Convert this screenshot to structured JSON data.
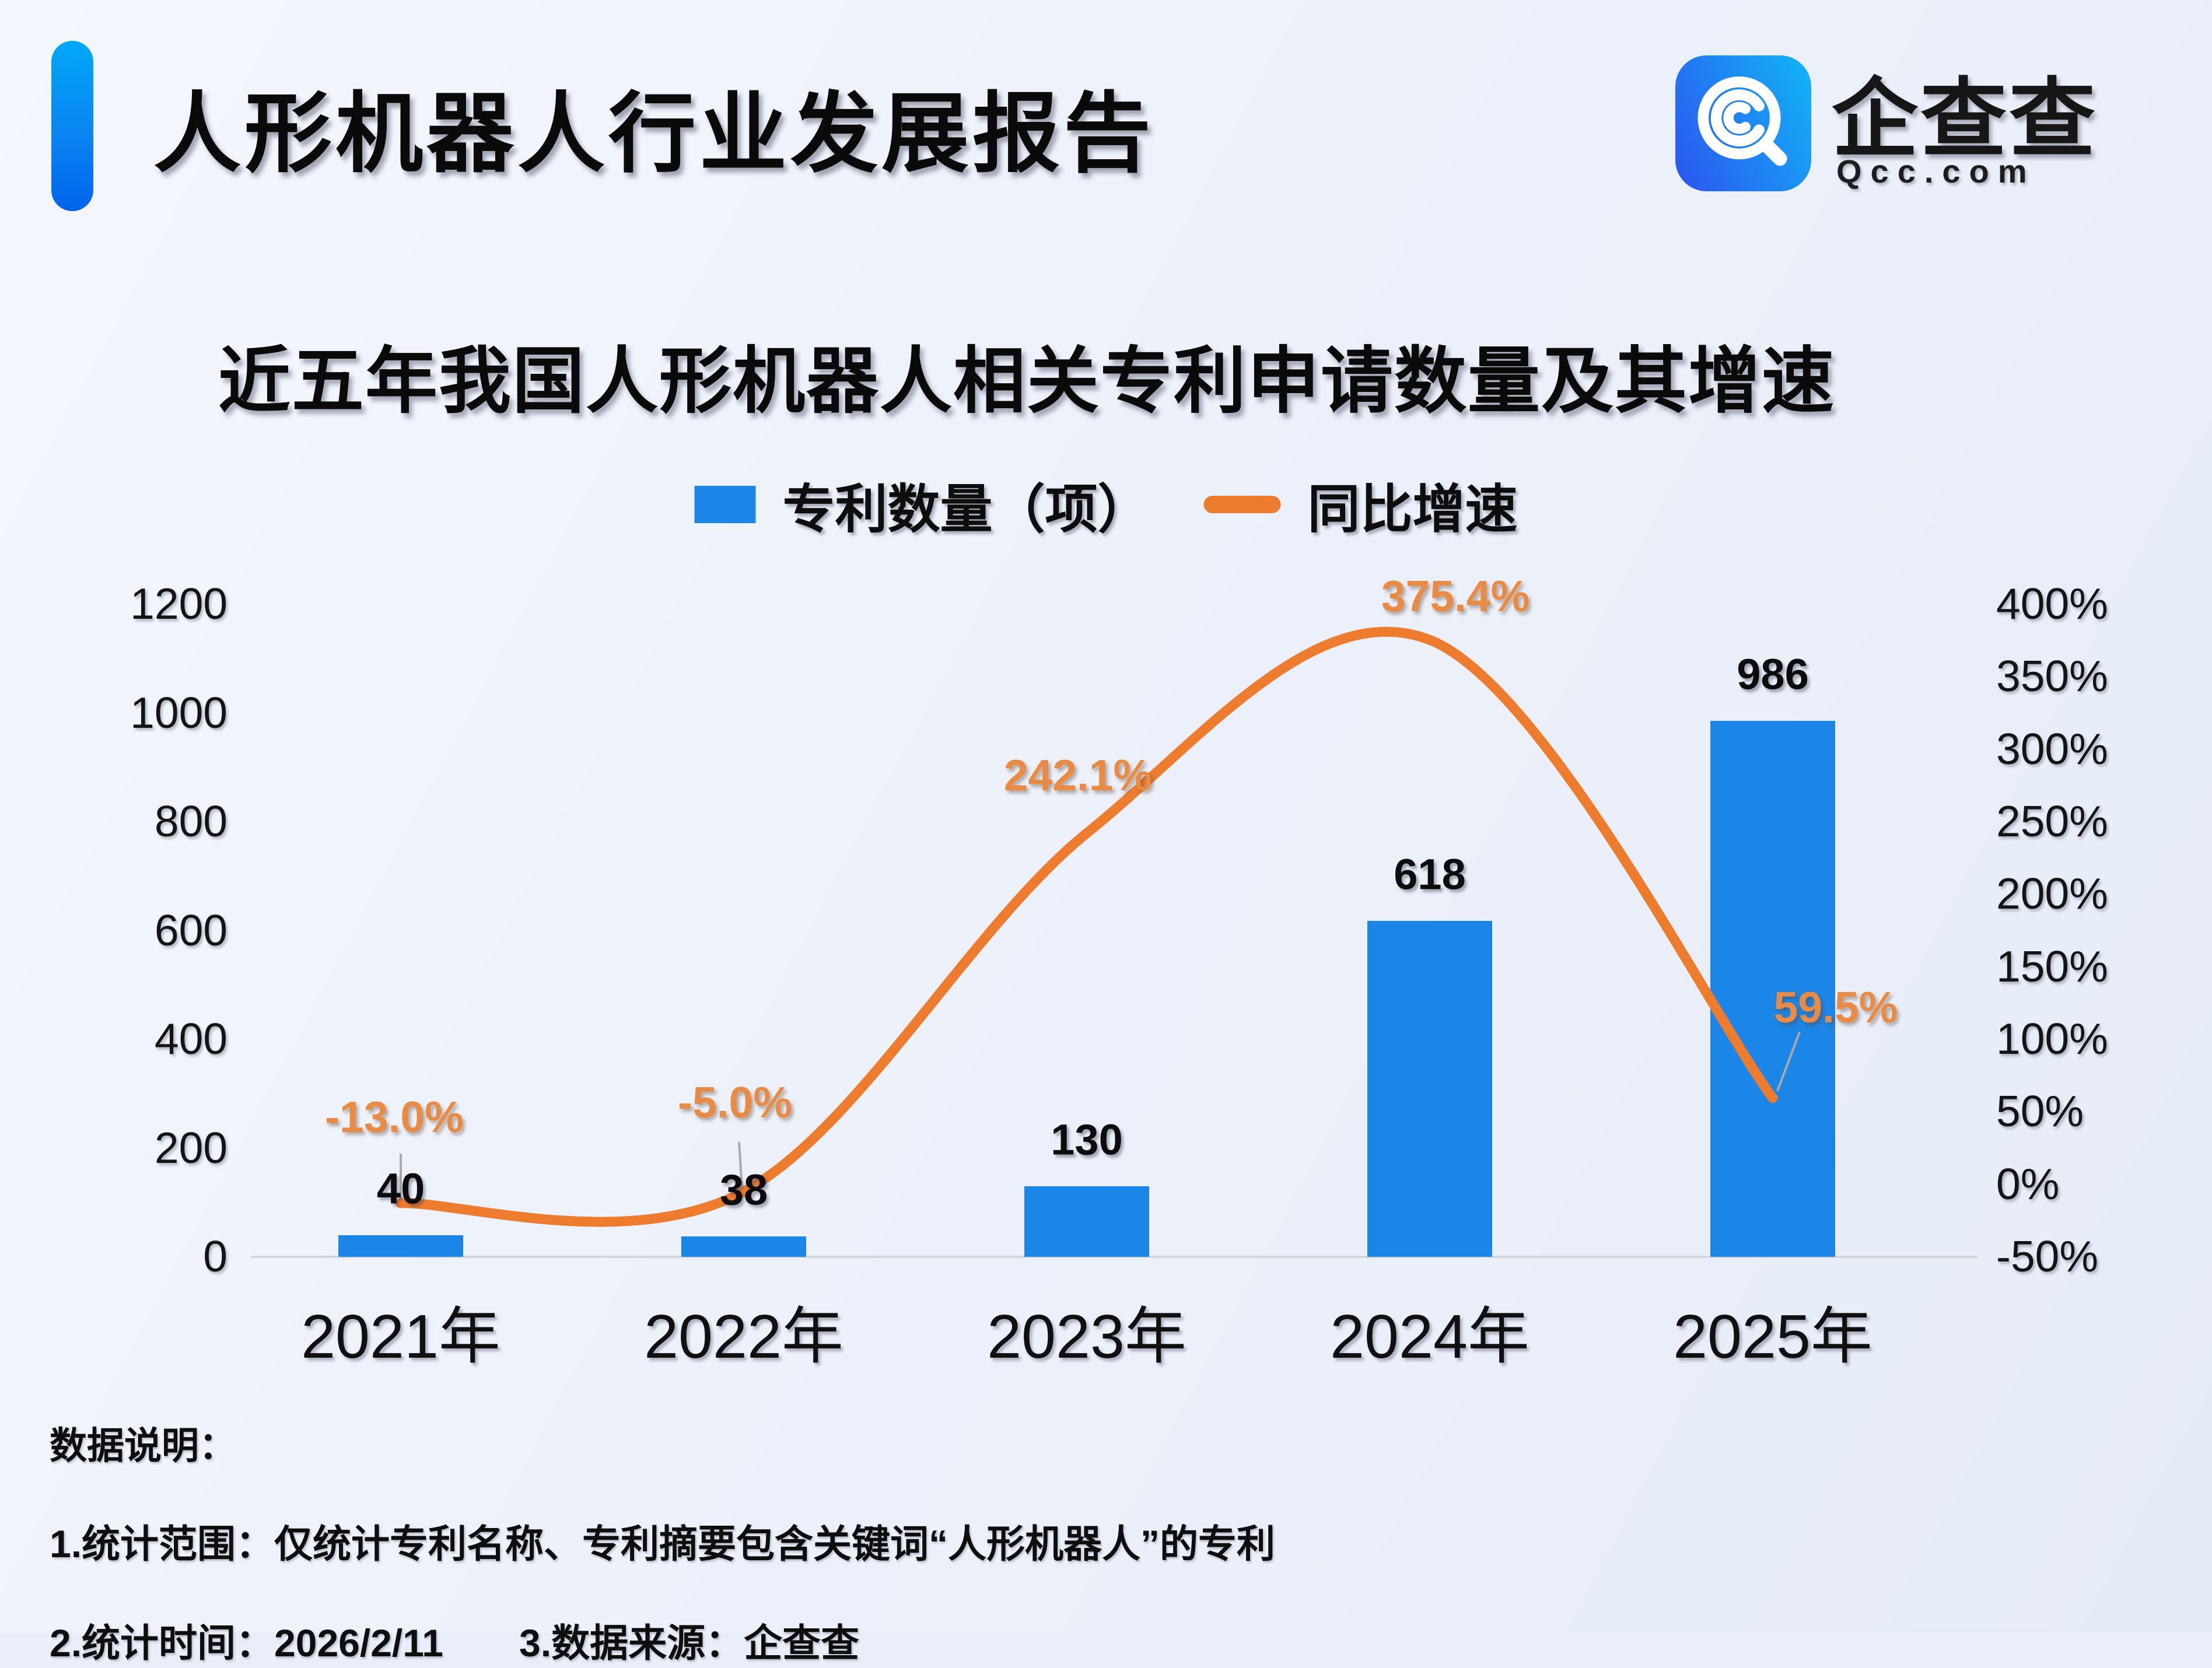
{
  "header": {
    "title": "人形机器人行业发展报告",
    "accent_colors": [
      "#00a8f7",
      "#0064ed"
    ]
  },
  "brand": {
    "name": "企查查",
    "domain": "Qcc.com",
    "logo_icon": "qcc-magnifier-icon",
    "logo_colors": [
      "#2a5cf0",
      "#14aef6"
    ]
  },
  "chart": {
    "title": "近五年我国人形机器人相关专利申请数量及其增速",
    "legend": [
      {
        "label": "专利数量（项）",
        "swatch": "blue-square",
        "color": "#1b86e8"
      },
      {
        "label": "同比增速",
        "swatch": "orange-line",
        "color": "#ed7c2f"
      }
    ]
  },
  "chart_data": {
    "type": "bar+line combo",
    "categories": [
      "2021年",
      "2022年",
      "2023年",
      "2024年",
      "2025年"
    ],
    "series": [
      {
        "name": "专利数量（项）",
        "type": "bar",
        "axis": "left",
        "values": [
          40,
          38,
          130,
          618,
          986
        ],
        "labels": [
          "40",
          "38",
          "130",
          "618",
          "986"
        ],
        "color": "#1b86e8",
        "label_color": "#0c0c0c"
      },
      {
        "name": "同比增速",
        "type": "line",
        "axis": "right",
        "values_percent": [
          -13.0,
          -5.0,
          242.1,
          375.4,
          59.5
        ],
        "labels": [
          "-13.0%",
          "-5.0%",
          "242.1%",
          "375.4%",
          "59.5%"
        ],
        "color": "#ed7c2f",
        "label_color": "#e98b44"
      }
    ],
    "left_axis": {
      "ticks": [
        "0",
        "200",
        "400",
        "600",
        "800",
        "1000",
        "1200"
      ],
      "min": 0,
      "max": 1200
    },
    "right_axis": {
      "ticks": [
        "-50%",
        "0%",
        "50%",
        "100%",
        "150%",
        "200%",
        "250%",
        "300%",
        "350%",
        "400%"
      ],
      "min": -50,
      "max": 400
    },
    "grid": false,
    "legend_position": "top",
    "smooth_line": true
  },
  "notes": {
    "heading": "数据说明：",
    "line1": "1.统计范围：仅统计专利名称、专利摘要包含关键词“人形机器人”的专利",
    "line2a": "2.统计时间：2026/2/11",
    "line2b": "3.数据来源：企查查"
  }
}
